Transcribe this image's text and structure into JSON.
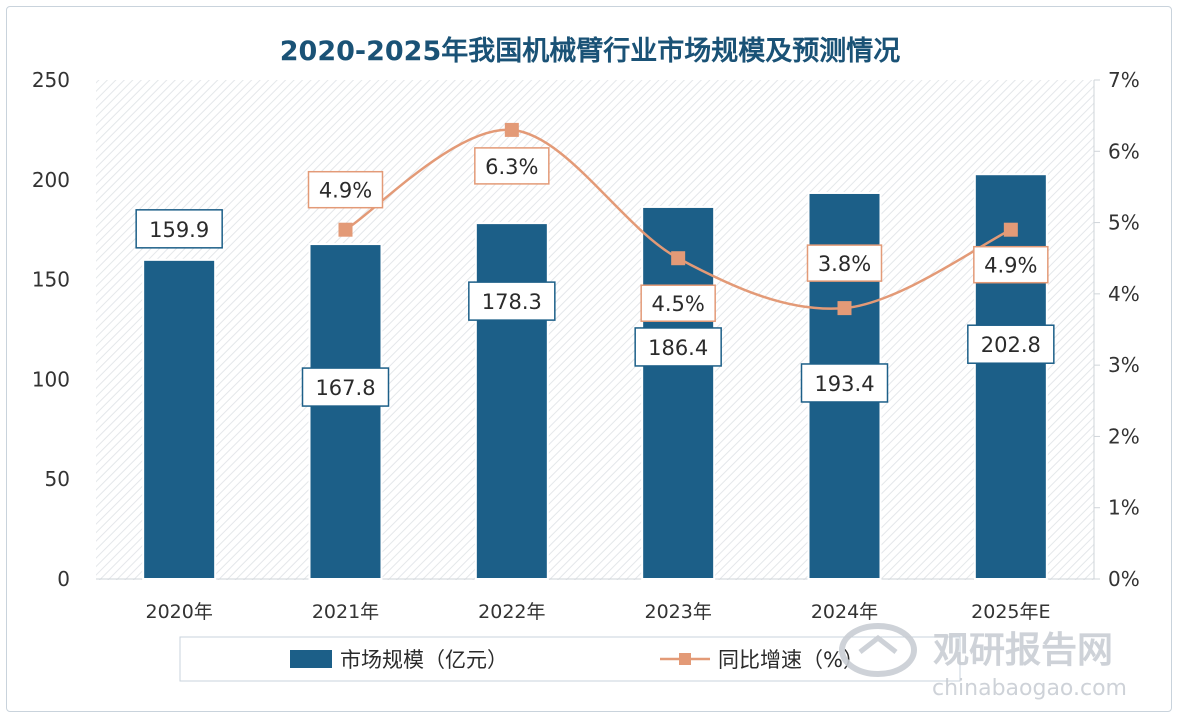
{
  "chart_data": {
    "type": "bar+line",
    "title": "2020-2025年我国机械臂行业市场规模及预测情况",
    "categories": [
      "2020年",
      "2021年",
      "2022年",
      "2023年",
      "2024年",
      "2025年E"
    ],
    "series": [
      {
        "name": "市场规模（亿元）",
        "type": "bar",
        "axis": "left",
        "values": [
          159.9,
          167.8,
          178.3,
          186.4,
          193.4,
          202.8
        ],
        "labels": [
          "159.9",
          "167.8",
          "178.3",
          "186.4",
          "193.4",
          "202.8"
        ]
      },
      {
        "name": "同比增速（%）",
        "type": "line",
        "axis": "right",
        "values": [
          null,
          4.9,
          6.3,
          4.5,
          3.8,
          4.9
        ],
        "labels": [
          "",
          "4.9%",
          "6.3%",
          "4.5%",
          "3.8%",
          "4.9%"
        ]
      }
    ],
    "y_left": {
      "min": 0,
      "max": 250,
      "ticks": [
        0,
        50,
        100,
        150,
        200,
        250
      ],
      "tick_labels": [
        "0",
        "50",
        "100",
        "150",
        "200",
        "250"
      ]
    },
    "y_right": {
      "min": 0,
      "max": 7,
      "ticks": [
        0,
        1,
        2,
        3,
        4,
        5,
        6,
        7
      ],
      "tick_labels": [
        "0%",
        "1%",
        "2%",
        "3%",
        "4%",
        "5%",
        "6%",
        "7%"
      ]
    },
    "legend_position": "bottom",
    "colors": {
      "bar": "#1c5f88",
      "line": "#e39a77",
      "marker": "#e39a77",
      "title": "#1a5276"
    }
  },
  "watermark": {
    "cn": "观研报告网",
    "en": "chinabaogao.com"
  }
}
